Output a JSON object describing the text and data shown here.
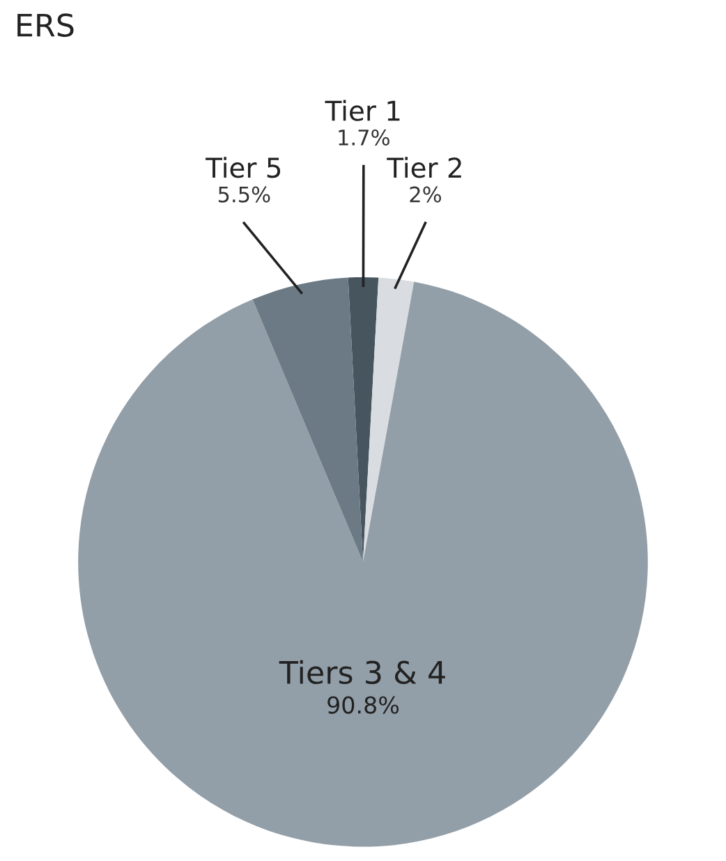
{
  "chart_data": {
    "type": "pie",
    "title": "ERS",
    "categories": [
      "Tier 1",
      "Tier 2",
      "Tiers 3 & 4",
      "Tier 5"
    ],
    "values": [
      1.7,
      2,
      90.8,
      5.5
    ],
    "value_labels": [
      "1.7%",
      "2%",
      "90.8%",
      "5.5%"
    ],
    "colors": [
      "#47555f",
      "#d9dde1",
      "#939fa8",
      "#6b7a84"
    ]
  }
}
